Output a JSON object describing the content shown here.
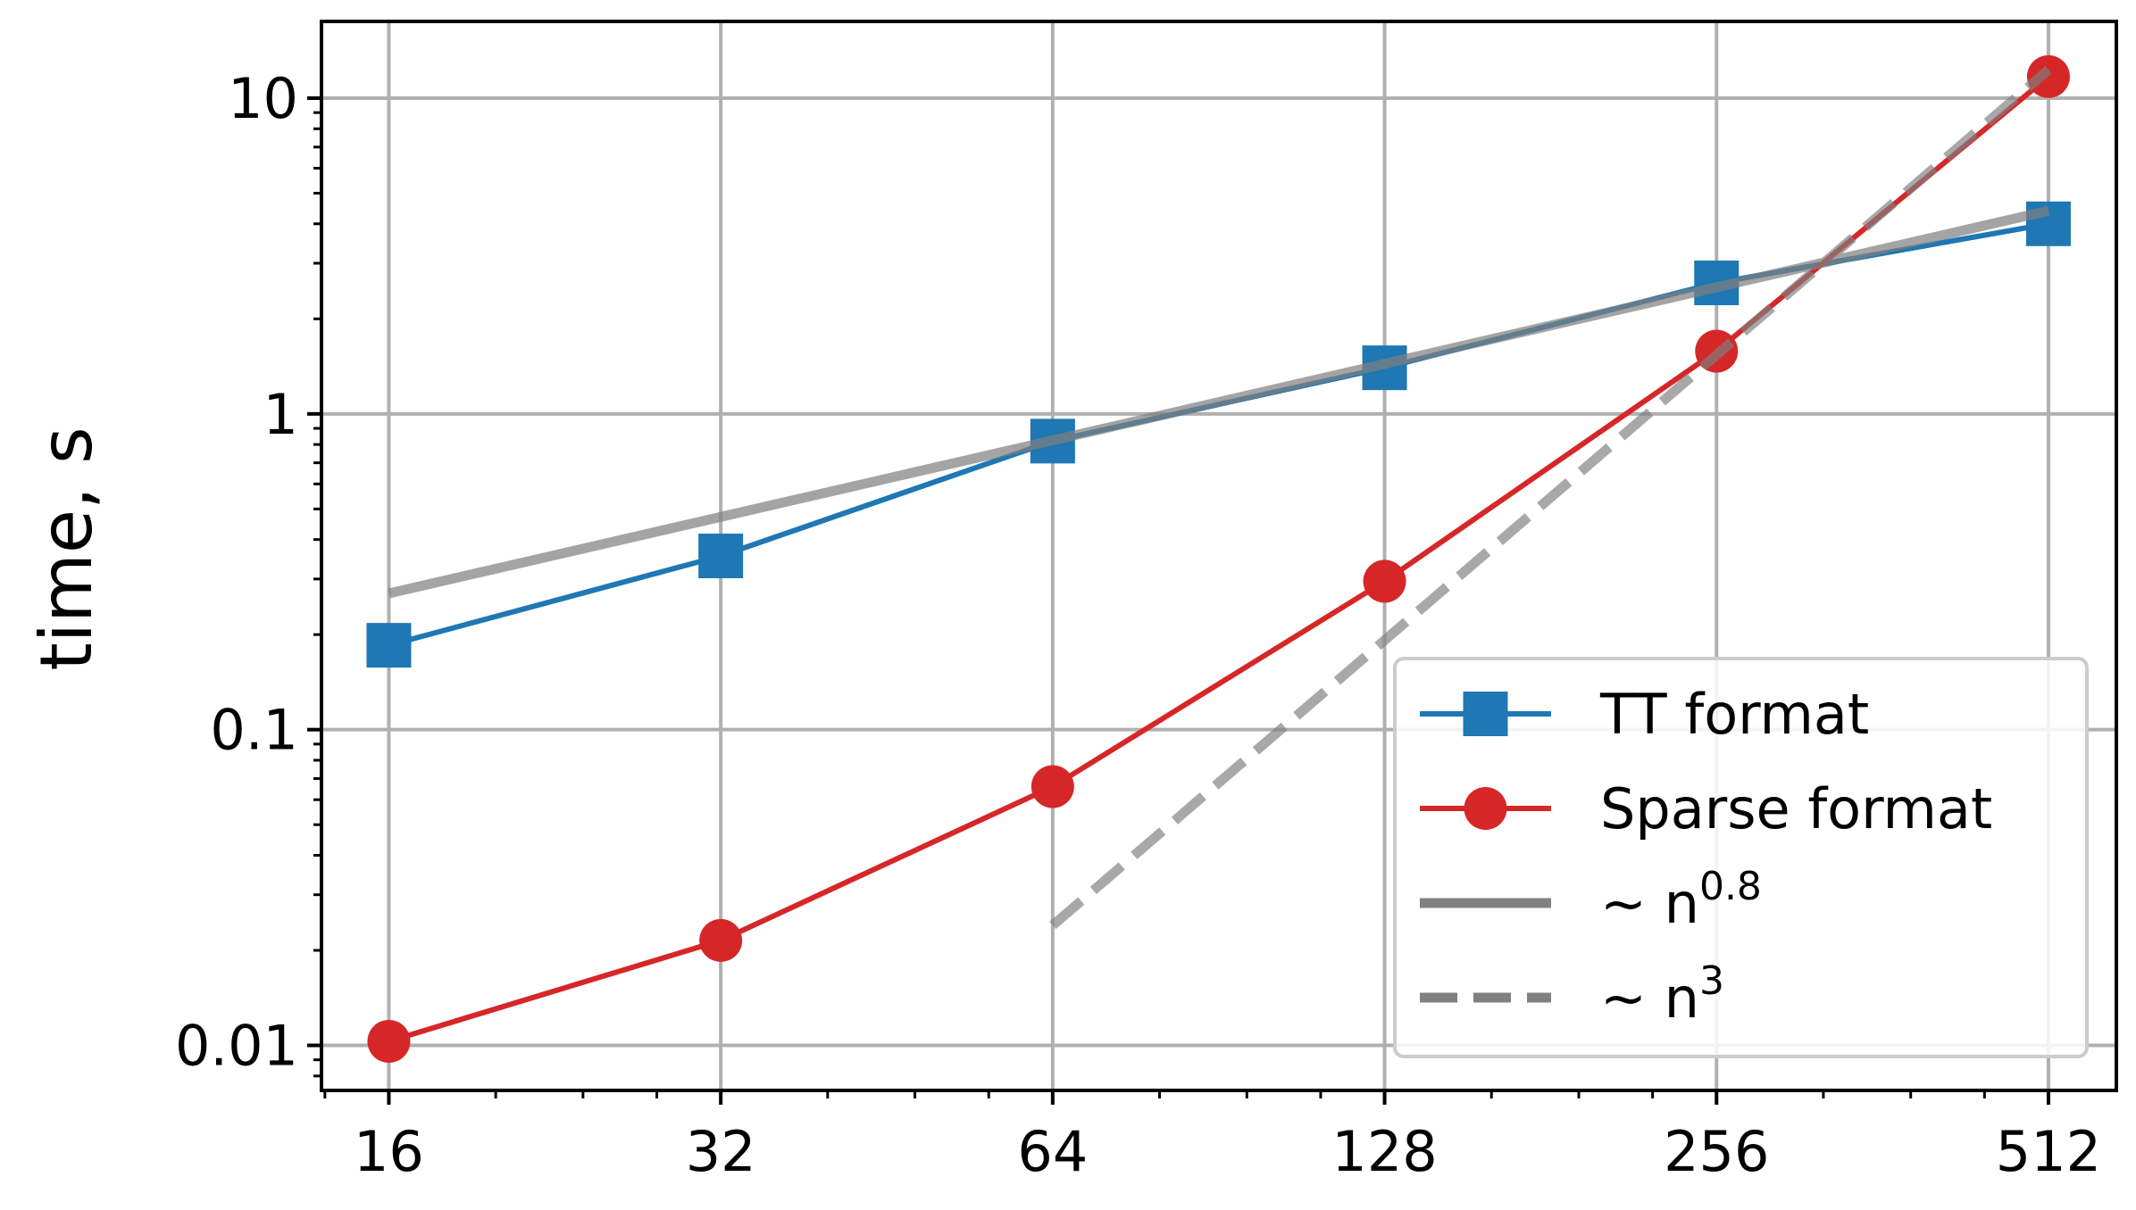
{
  "chart_data": {
    "type": "line",
    "xscale": "log2",
    "yscale": "log10",
    "x": [
      16,
      32,
      64,
      128,
      256,
      512
    ],
    "xlim": [
      13.9,
      590
    ],
    "ylim": [
      0.0072,
      17.5
    ],
    "xticks": [
      16,
      32,
      64,
      128,
      256,
      512
    ],
    "xtick_labels": [
      "16",
      "32",
      "64",
      "128",
      "256",
      "512"
    ],
    "yticks": [
      0.01,
      0.1,
      1,
      10
    ],
    "ytick_labels": [
      "0.01",
      "0.1",
      "1",
      "10"
    ],
    "xlabel": "",
    "ylabel": "time, s",
    "grid": true,
    "legend_position": "lower-right",
    "series": [
      {
        "name": "TT format",
        "x": [
          16,
          32,
          64,
          128,
          256,
          512
        ],
        "values": [
          0.185,
          0.355,
          0.82,
          1.4,
          2.6,
          4.0
        ],
        "color": "#1f77b4",
        "marker": "square",
        "linestyle": "solid"
      },
      {
        "name": "Sparse format",
        "x": [
          16,
          32,
          64,
          128,
          256,
          512
        ],
        "values": [
          0.0103,
          0.0215,
          0.066,
          0.295,
          1.58,
          11.7
        ],
        "color": "#d62728",
        "marker": "circle",
        "linestyle": "solid"
      },
      {
        "name": "~ n",
        "name_sup": "0.8",
        "x": [
          16,
          512
        ],
        "values": [
          0.27,
          4.4
        ],
        "color": "#808080",
        "marker": "none",
        "linestyle": "solid"
      },
      {
        "name": "~ n",
        "name_sup": "3",
        "x": [
          64,
          512
        ],
        "values": [
          0.024,
          12.3
        ],
        "color": "#808080",
        "marker": "none",
        "linestyle": "dashed"
      }
    ]
  }
}
